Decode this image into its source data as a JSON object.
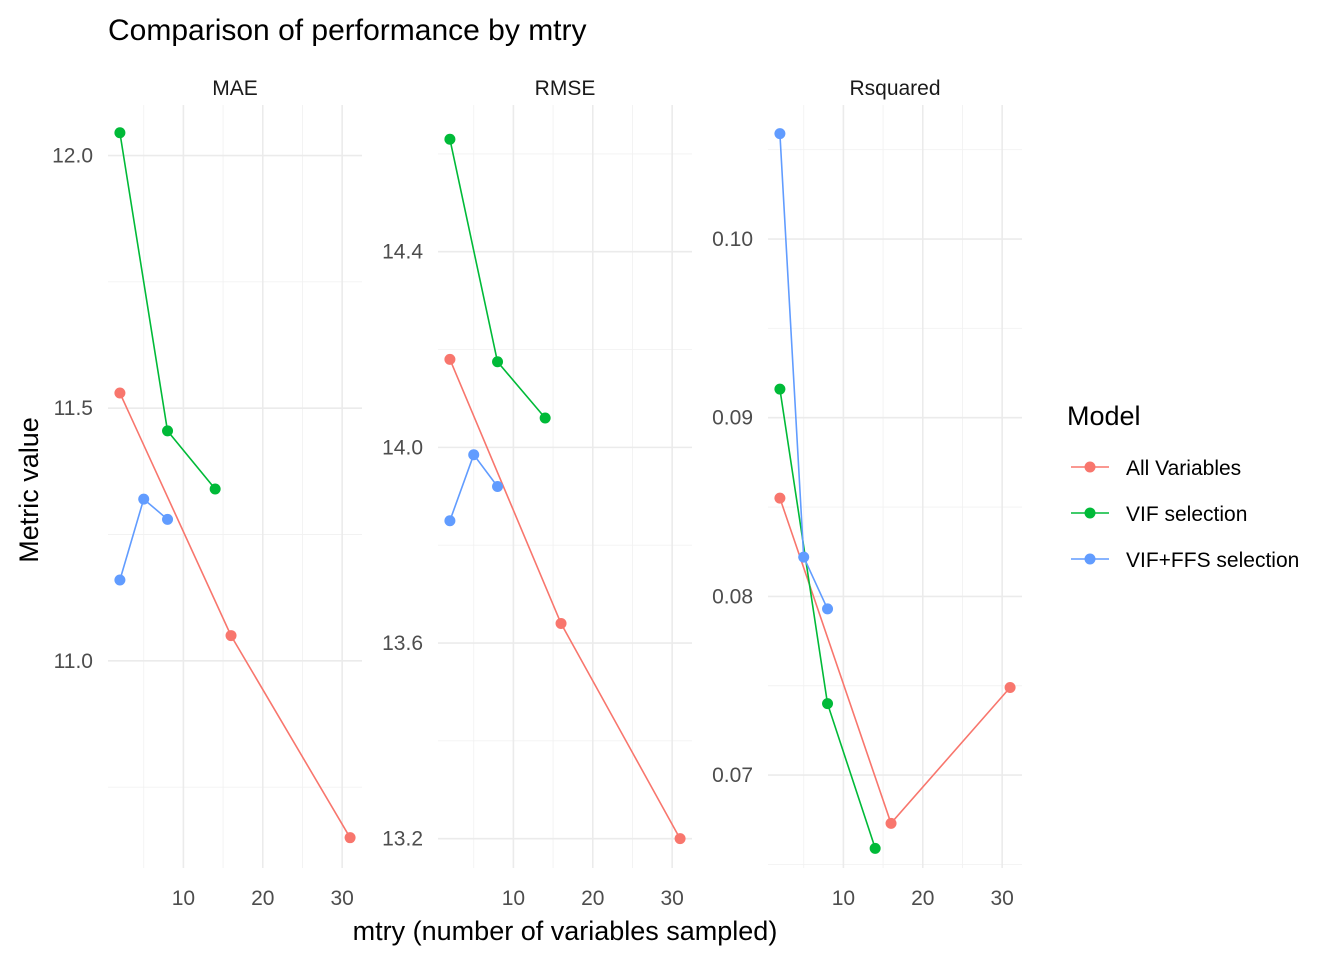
{
  "chart_data": {
    "type": "line",
    "title": "Comparison of performance by mtry",
    "xlabel": "mtry (number of variables sampled)",
    "ylabel": "Metric value",
    "legend": {
      "title": "Model",
      "position": "right",
      "entries": [
        "All Variables",
        "VIF selection",
        "VIF+FFS selection"
      ]
    },
    "colors": {
      "All Variables": "#F8766D",
      "VIF selection": "#00BA38",
      "VIF+FFS selection": "#619CFF"
    },
    "grid": true,
    "xlim": [
      0.5,
      32.5
    ],
    "xticks": [
      10,
      20,
      30
    ],
    "facets": [
      {
        "name": "MAE",
        "ylim": [
          10.59,
          12.1
        ],
        "yticks": [
          11.0,
          11.5,
          12.0
        ],
        "ytick_labels": [
          "11.0",
          "11.5",
          "12.0"
        ],
        "series": [
          {
            "name": "All Variables",
            "x": [
              2,
              16,
              31
            ],
            "y": [
              11.53,
              11.05,
              10.65
            ]
          },
          {
            "name": "VIF selection",
            "x": [
              2,
              8,
              14
            ],
            "y": [
              12.045,
              11.455,
              11.34
            ]
          },
          {
            "name": "VIF+FFS selection",
            "x": [
              2,
              5,
              8
            ],
            "y": [
              11.16,
              11.32,
              11.28
            ]
          }
        ]
      },
      {
        "name": "RMSE",
        "ylim": [
          13.14,
          14.7
        ],
        "yticks": [
          13.2,
          13.6,
          14.0,
          14.4
        ],
        "ytick_labels": [
          "13.2",
          "13.6",
          "14.0",
          "14.4"
        ],
        "series": [
          {
            "name": "All Variables",
            "x": [
              2,
              16,
              31
            ],
            "y": [
              14.18,
              13.64,
              13.2
            ]
          },
          {
            "name": "VIF selection",
            "x": [
              2,
              8,
              14
            ],
            "y": [
              14.63,
              14.175,
              14.06
            ]
          },
          {
            "name": "VIF+FFS selection",
            "x": [
              2,
              5,
              8
            ],
            "y": [
              13.85,
              13.985,
              13.92
            ]
          }
        ]
      },
      {
        "name": "Rsquared",
        "ylim": [
          0.0648,
          0.1075
        ],
        "yticks": [
          0.07,
          0.08,
          0.09,
          0.1
        ],
        "ytick_labels": [
          "0.07",
          "0.08",
          "0.09",
          "0.10"
        ],
        "series": [
          {
            "name": "All Variables",
            "x": [
              2,
              16,
              31
            ],
            "y": [
              0.0855,
              0.0673,
              0.0749
            ]
          },
          {
            "name": "VIF selection",
            "x": [
              2,
              8,
              14
            ],
            "y": [
              0.0916,
              0.074,
              0.0659
            ]
          },
          {
            "name": "VIF+FFS selection",
            "x": [
              2,
              5,
              8
            ],
            "y": [
              0.1059,
              0.0822,
              0.0793
            ]
          }
        ]
      }
    ]
  }
}
